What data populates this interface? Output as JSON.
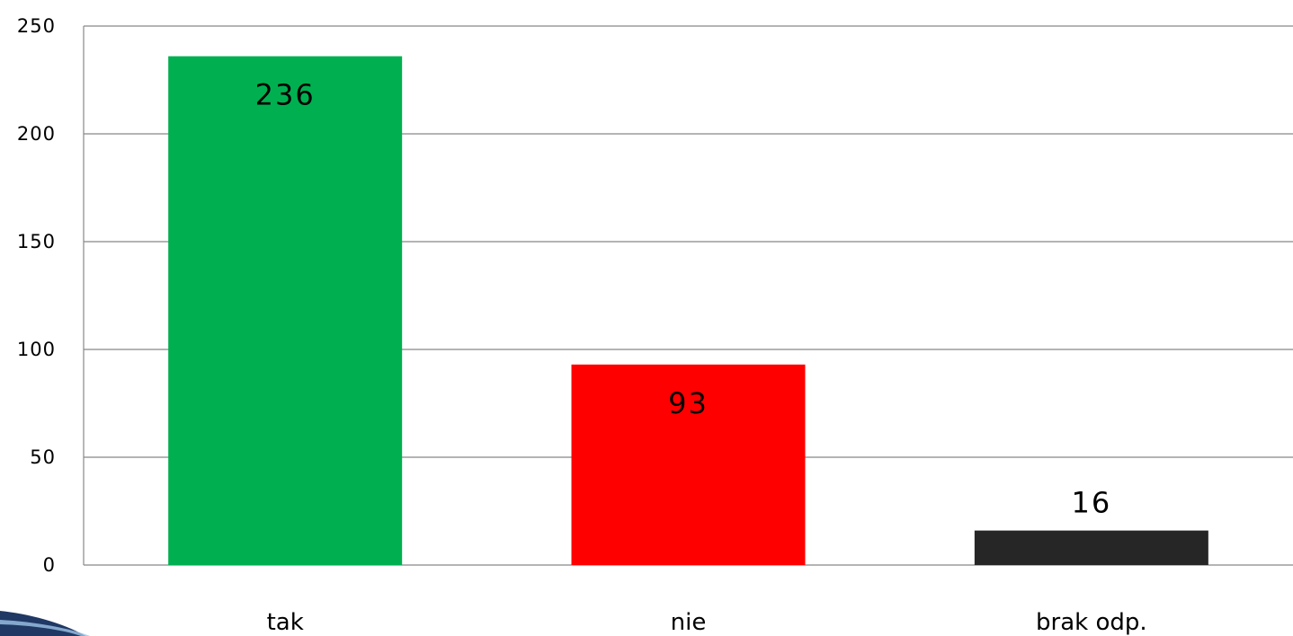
{
  "chart_data": {
    "type": "bar",
    "categories": [
      "tak",
      "nie",
      "brak odp."
    ],
    "values": [
      236,
      93,
      16
    ],
    "colors": [
      "#00b050",
      "#ff0000",
      "#262626"
    ],
    "data_labels": [
      "236",
      "93",
      "16"
    ],
    "ylim": [
      0,
      250
    ],
    "yticks": [
      0,
      50,
      100,
      150,
      200,
      250
    ],
    "ytick_labels": [
      "0",
      "50",
      "100",
      "150",
      "200",
      "250"
    ],
    "grid": true,
    "legend": "none"
  },
  "decoration": {
    "corner_swoosh_color": "#1f3864"
  }
}
